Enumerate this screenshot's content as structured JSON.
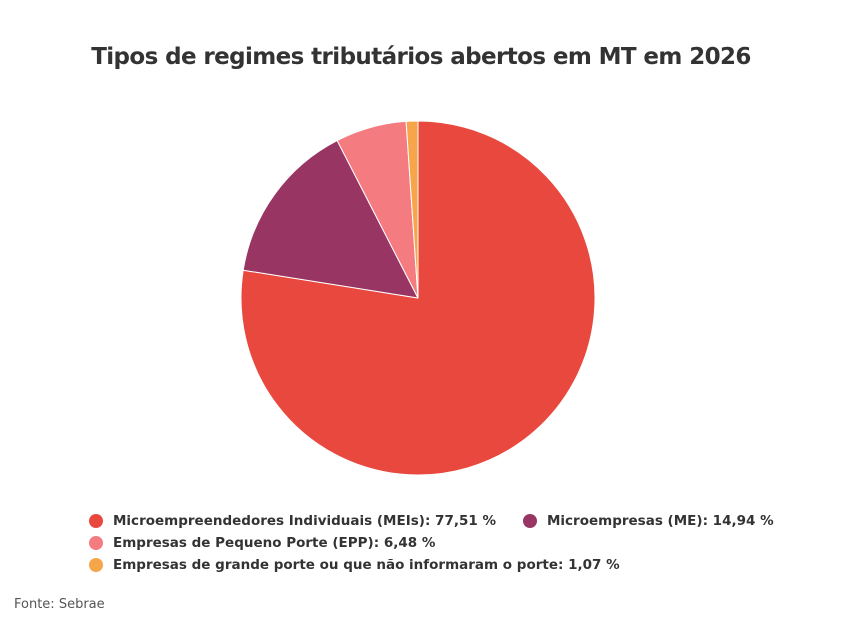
{
  "chart_data": {
    "type": "pie",
    "title": "Tipos de regimes tributários abertos em MT em 2026",
    "unit_suffix": " %",
    "slices": [
      {
        "label": "Microempreendedores Individuais (MEIs)",
        "value": 77.51,
        "value_text": "77,51",
        "color": "#e8483e"
      },
      {
        "label": "Microempresas (ME)",
        "value": 14.94,
        "value_text": "14,94",
        "color": "#993563"
      },
      {
        "label": "Empresas de Pequeno Porte (EPP)",
        "value": 6.48,
        "value_text": "6,48",
        "color": "#f47c80"
      },
      {
        "label": "Empresas de grande porte ou que não informaram o porte",
        "value": 1.07,
        "value_text": "1,07",
        "color": "#f6a54a"
      }
    ],
    "legend_position": "bottom",
    "start_angle": "top, clockwise"
  },
  "source": "Fonte: Sebrae"
}
